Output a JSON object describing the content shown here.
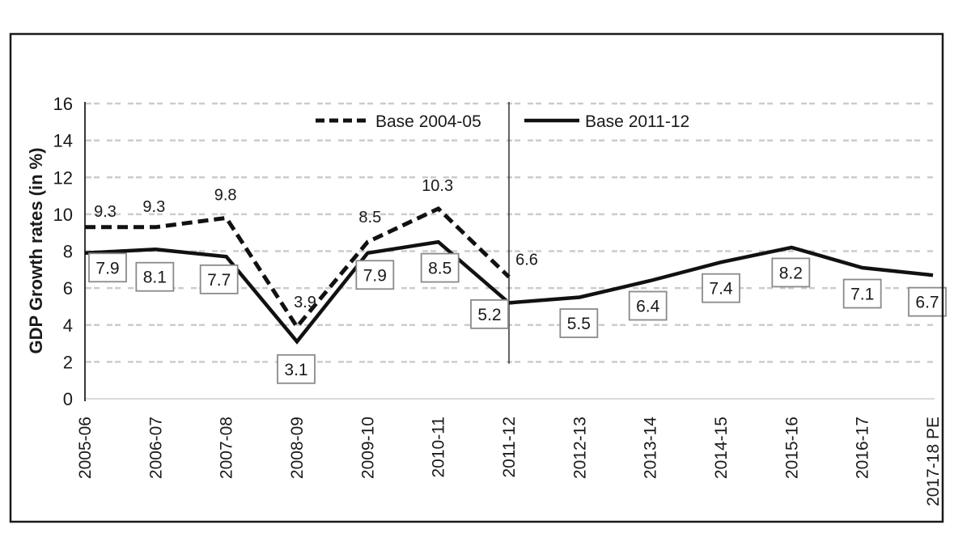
{
  "chart_data": {
    "type": "line",
    "title": "",
    "xlabel": "",
    "ylabel": "GDP Growth rates (in %)",
    "ylim": [
      0,
      16
    ],
    "yticks": [
      0,
      2,
      4,
      6,
      8,
      10,
      12,
      14,
      16
    ],
    "grid": "horizontal-dashed",
    "legend_position": "top-inside",
    "categories": [
      "2005-06",
      "2006-07",
      "2007-08",
      "2008-09",
      "2009-10",
      "2010-11",
      "2011-12",
      "2012-13",
      "2013-14",
      "2014-15",
      "2015-16",
      "2016-17",
      "2017-18 PE"
    ],
    "series": [
      {
        "name": "Base 2004-05",
        "style": "dashed",
        "label_style": "plain",
        "values": [
          9.3,
          9.3,
          9.8,
          3.9,
          8.5,
          10.3,
          6.6,
          null,
          null,
          null,
          null,
          null,
          null
        ]
      },
      {
        "name": "Base 2011-12",
        "style": "solid",
        "label_style": "boxed",
        "values": [
          7.9,
          8.1,
          7.7,
          3.1,
          7.9,
          8.5,
          5.2,
          5.5,
          6.4,
          7.4,
          8.2,
          7.1,
          6.7
        ]
      }
    ],
    "separator": {
      "category": "2011-12",
      "from_value": 1.9,
      "to_value": 16
    },
    "colors": {
      "line": "#111111",
      "grid": "#cccccc",
      "baseline": "#d9d9d9",
      "box_border": "#8a8a8a",
      "box_fill": "#ffffff",
      "frame": "#1a1a1a",
      "background": "#ffffff",
      "text": "#1a1a1a"
    },
    "label_offsets": {
      "dashed": [
        [
          25,
          -20
        ],
        [
          -2,
          -26
        ],
        [
          -1,
          -29
        ],
        [
          10,
          -31
        ],
        [
          3,
          -31
        ],
        [
          -1,
          -29
        ],
        [
          22,
          -22
        ]
      ],
      "boxed": [
        [
          28,
          18
        ],
        [
          -1,
          34
        ],
        [
          -9,
          28
        ],
        [
          -1,
          34
        ],
        [
          9,
          27
        ],
        [
          2,
          32
        ],
        [
          -24,
          14
        ],
        [
          -1,
          32
        ],
        [
          -3,
          31
        ],
        [
          0,
          32
        ],
        [
          -1,
          31
        ],
        [
          0,
          32
        ],
        [
          -7,
          33
        ]
      ]
    }
  }
}
